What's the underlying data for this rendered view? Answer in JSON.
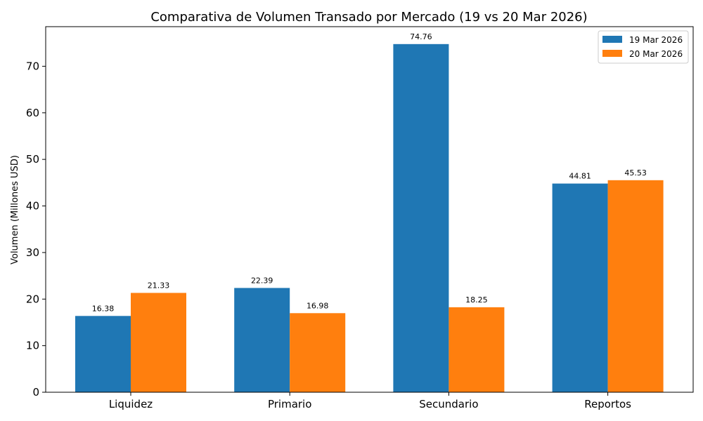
{
  "chart_data": {
    "type": "bar",
    "title": "Comparativa de Volumen Transado por Mercado (19 vs 20 Mar 2026)",
    "xlabel": "",
    "ylabel": "Volumen (Millones USD)",
    "categories": [
      "Liquidez",
      "Primario",
      "Secundario",
      "Reportos"
    ],
    "series": [
      {
        "name": "19 Mar 2026",
        "color": "#1f77b4",
        "values": [
          16.38,
          22.39,
          74.76,
          44.81
        ]
      },
      {
        "name": "20 Mar 2026",
        "color": "#ff7f0e",
        "values": [
          21.33,
          16.98,
          18.25,
          45.53
        ]
      }
    ],
    "ylim": [
      0,
      78.5
    ],
    "yticks": [
      0,
      10,
      20,
      30,
      40,
      50,
      60,
      70
    ],
    "grid": false,
    "legend_position": "top-right"
  }
}
